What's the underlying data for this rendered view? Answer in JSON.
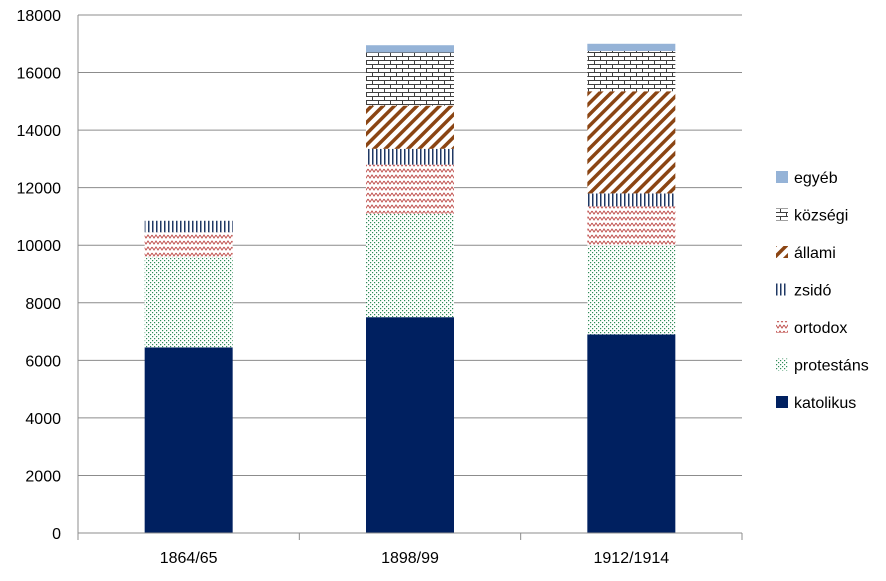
{
  "chart_data": {
    "type": "bar",
    "stacked": true,
    "categories": [
      "1864/65",
      "1898/99",
      "1912/1914"
    ],
    "series": [
      {
        "name": "katolikus",
        "values": [
          6450,
          7500,
          6900
        ],
        "pattern": "solid",
        "color": "#002060"
      },
      {
        "name": "protestáns",
        "values": [
          3150,
          3600,
          3100
        ],
        "pattern": "dots",
        "color": "#2e8b57"
      },
      {
        "name": "ortodox",
        "values": [
          850,
          1700,
          1350
        ],
        "pattern": "zigzag",
        "color": "#c0504d"
      },
      {
        "name": "zsidó",
        "values": [
          400,
          550,
          450
        ],
        "pattern": "vlines",
        "color": "#1f3864"
      },
      {
        "name": "állami",
        "values": [
          0,
          1500,
          3550
        ],
        "pattern": "diagonal",
        "color": "#8b4513"
      },
      {
        "name": "községi",
        "values": [
          0,
          1850,
          1400
        ],
        "pattern": "brick",
        "color": "#404040"
      },
      {
        "name": "egyéb",
        "values": [
          0,
          250,
          250
        ],
        "pattern": "solid",
        "color": "#95b3d7"
      }
    ],
    "ylim": [
      0,
      18000
    ],
    "yticks": [
      0,
      2000,
      4000,
      6000,
      8000,
      10000,
      12000,
      14000,
      16000,
      18000
    ],
    "grid": true,
    "legend": "right",
    "legend_order": [
      "egyéb",
      "községi",
      "állami",
      "zsidó",
      "ortodox",
      "protestáns",
      "katolikus"
    ],
    "title": "",
    "xlabel": "",
    "ylabel": ""
  }
}
